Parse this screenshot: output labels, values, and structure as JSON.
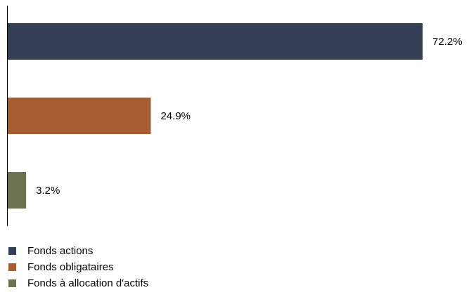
{
  "chart_data": {
    "type": "bar",
    "orientation": "horizontal",
    "title": "",
    "xlabel": "",
    "ylabel": "",
    "categories": [
      "Fonds actions",
      "Fonds obligataires",
      "Fonds à allocation d'actifs"
    ],
    "values": [
      72.2,
      24.9,
      3.2
    ],
    "data_labels": [
      "72.2%",
      "24.9%",
      "3.2%"
    ],
    "colors": [
      "#343f56",
      "#a65d2f",
      "#6b7350"
    ],
    "xlim": [
      0,
      72.2
    ],
    "grid": false,
    "legend_position": "bottom-left"
  }
}
